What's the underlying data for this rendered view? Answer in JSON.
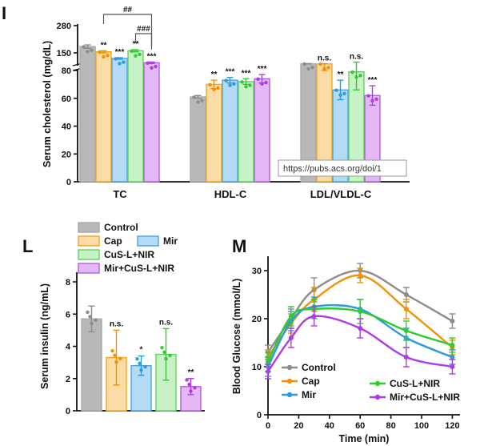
{
  "colors": {
    "Control": "#a9a9a9",
    "Cap": "#f5a623",
    "Mir": "#4aa3e0",
    "CuS-L+NIR": "#5fd35f",
    "Mir+CuS-L+NIR": "#b45ee6",
    "Control_fill": "#b8b8b8",
    "Cap_fill": "#fbdba6",
    "Mir_fill": "#b5daf5",
    "CuS-L+NIR_fill": "#c6f2c6",
    "Mir+CuS-L+NIR_fill": "#e3b8f5",
    "Cap_line": "#f39200",
    "Mir_line": "#2a9be0",
    "CuS-L+NIR_line": "#2ecc2e",
    "Mir+CuS-L+NIR_line": "#b03be6",
    "Control_line": "#8c8c8c"
  },
  "url_watermark": "https://pubs.acs.org/doi/1",
  "chart_data": [
    {
      "panel": "I",
      "type": "bar",
      "ylabel": "Serum cholesterol (mg/dL)",
      "yticks_lower": [
        "0",
        "20",
        "40",
        "60",
        "80"
      ],
      "yticks_upper": [
        "150",
        "280"
      ],
      "ylim_lower": [
        0,
        80
      ],
      "ylim_upper": [
        80,
        280
      ],
      "categories": [
        "TC",
        "HDL-C",
        "LDL/VLDL-C"
      ],
      "series": [
        {
          "name": "Control",
          "values": [
            180,
            61,
            82
          ],
          "errors": [
            8,
            1,
            1
          ],
          "sig": [
            "",
            "",
            ""
          ]
        },
        {
          "name": "Cap",
          "values": [
            155,
            70,
            81
          ],
          "errors": [
            5,
            3,
            1
          ],
          "sig": [
            "**",
            "**",
            "n.s."
          ]
        },
        {
          "name": "Mir",
          "values": [
            115,
            73,
            66
          ],
          "errors": [
            5,
            2,
            7
          ],
          "sig": [
            "***",
            "***",
            "**"
          ]
        },
        {
          "name": "CuS-L+NIR",
          "values": [
            160,
            72,
            79
          ],
          "errors": [
            5,
            2,
            13
          ],
          "sig": [
            "**",
            "***",
            "n.s."
          ]
        },
        {
          "name": "Mir+CuS-L+NIR",
          "values": [
            88,
            74,
            62
          ],
          "errors": [
            5,
            3,
            7
          ],
          "sig": [
            "***",
            "***",
            "***"
          ]
        }
      ],
      "brackets": [
        "##",
        "###"
      ]
    },
    {
      "panel": "L",
      "type": "bar",
      "ylabel": "Serum insulin (ng/mL)",
      "ylim": [
        0,
        8
      ],
      "yticks": [
        "0",
        "2",
        "4",
        "6",
        "8"
      ],
      "categories": [
        "Control",
        "Cap",
        "Mir",
        "CuS-L+NIR",
        "Mir+CuS-L+NIR"
      ],
      "values": [
        5.7,
        3.3,
        2.8,
        3.5,
        1.5
      ],
      "errors": [
        0.8,
        1.7,
        0.6,
        1.6,
        0.5
      ],
      "sig": [
        "",
        "n.s.",
        "*",
        "n.s.",
        "**"
      ],
      "legend": [
        "Control",
        "Cap",
        "Mir",
        "CuS-L+NIR",
        "Mir+CuS-L+NIR"
      ]
    },
    {
      "panel": "M",
      "type": "line",
      "xlabel": "Time (min)",
      "ylabel": "Blood Glucose (mmol/L)",
      "xlim": [
        0,
        125
      ],
      "ylim": [
        0,
        33
      ],
      "xticks": [
        "0",
        "20",
        "40",
        "60",
        "80",
        "100",
        "120"
      ],
      "yticks": [
        "0",
        "10",
        "20",
        "30"
      ],
      "x": [
        0,
        15,
        30,
        60,
        90,
        120
      ],
      "series": [
        {
          "name": "Control",
          "values": [
            13,
            20,
            26,
            30,
            25,
            19.5
          ],
          "errors": [
            1.5,
            2,
            2.5,
            1.5,
            1.5,
            1.5
          ]
        },
        {
          "name": "Cap",
          "values": [
            12,
            19,
            24,
            29,
            22,
            14
          ],
          "errors": [
            1.5,
            2,
            2.5,
            1.5,
            2,
            1.5
          ]
        },
        {
          "name": "Mir",
          "values": [
            10,
            19.5,
            22.5,
            22,
            16,
            12
          ],
          "errors": [
            2,
            2,
            2,
            2,
            2,
            1.5
          ]
        },
        {
          "name": "CuS-L+NIR",
          "values": [
            11,
            20.5,
            22,
            21.5,
            17.5,
            14.5
          ],
          "errors": [
            2,
            2,
            2,
            2.5,
            2,
            1.5
          ]
        },
        {
          "name": "Mir+CuS-L+NIR",
          "values": [
            9,
            16,
            20.5,
            18,
            12,
            10
          ],
          "errors": [
            1.5,
            2,
            2,
            2,
            2,
            1.5
          ]
        }
      ],
      "legend": [
        "Control",
        "Cap",
        "Mir",
        "CuS-L+NIR",
        "Mir+CuS-L+NIR"
      ]
    }
  ]
}
